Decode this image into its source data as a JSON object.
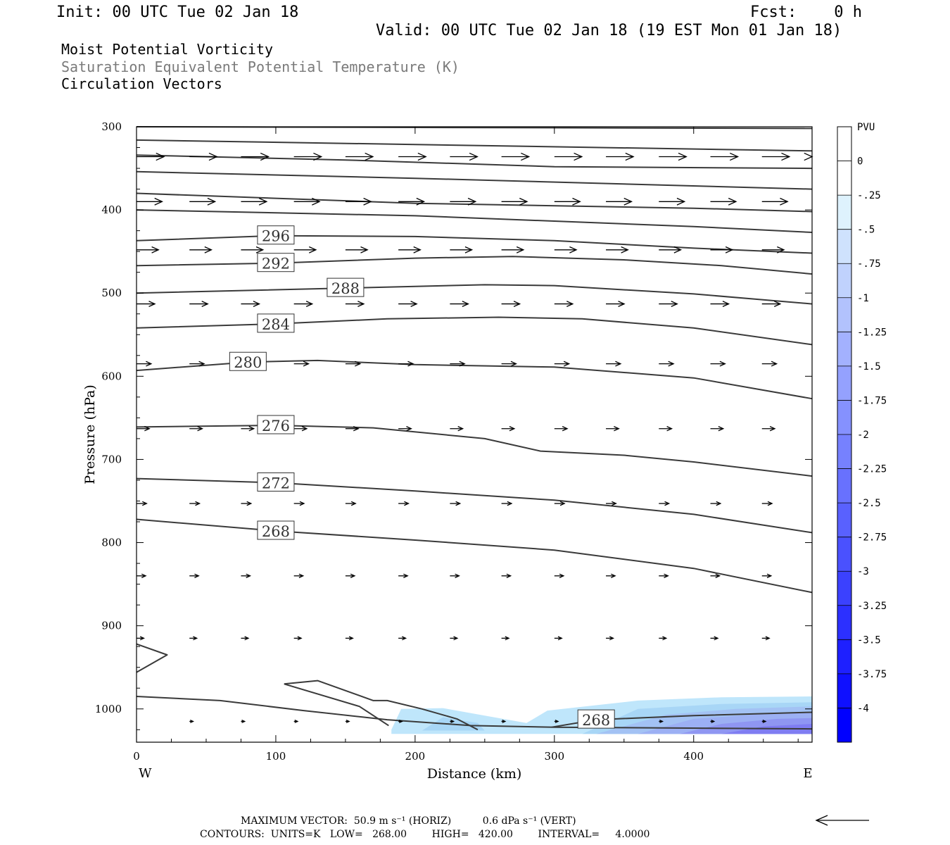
{
  "header": {
    "init": "Init: 00 UTC Tue 02 Jan 18",
    "fcst": "Fcst:    0 h",
    "valid": "Valid: 00 UTC Tue 02 Jan 18 (19 EST Mon 01 Jan 18)",
    "title1": "Moist Potential Vorticity",
    "title2": "Saturation Equivalent Potential Temperature (K)",
    "title3": "Circulation Vectors"
  },
  "footer": {
    "max_vector": "MAXIMUM VECTOR:  50.9 m s⁻¹ (HORIZ)          0.6 dPa s⁻¹ (VERT)",
    "contours": "CONTOURS:  UNITS=K   LOW=   268.00        HIGH=   420.00        INTERVAL=     4.0000"
  },
  "colors": {
    "contour": "#3a3a3a",
    "vector": "#000000",
    "pv_fill": [
      "#bfe6fb",
      "#a8d6f6",
      "#a3c2f4",
      "#9cb0f4",
      "#8f96f2",
      "#7f7df2"
    ]
  },
  "chart_data": {
    "type": "cross-section",
    "xlabel": "Distance (km)",
    "ylabel": "Pressure (hPa)",
    "xlim": [
      0,
      485
    ],
    "ylim": [
      1040,
      300
    ],
    "xticks": [
      0,
      100,
      200,
      300,
      400
    ],
    "yticks": [
      300,
      400,
      500,
      600,
      700,
      800,
      900,
      1000
    ],
    "x_end_labels": {
      "left": "W",
      "right": "E"
    },
    "colorbar": {
      "unit": "PVU",
      "levels": [
        "0",
        "-.25",
        "-.5",
        "-.75",
        "-1",
        "-1.25",
        "-1.5",
        "-1.75",
        "-2",
        "-2.25",
        "-2.5",
        "-2.75",
        "-3",
        "-3.25",
        "-3.5",
        "-3.75",
        "-4"
      ]
    },
    "contours": [
      {
        "pts": [
          [
            0,
            300
          ],
          [
            485,
            302
          ]
        ]
      },
      {
        "pts": [
          [
            0,
            316
          ],
          [
            485,
            329
          ]
        ]
      },
      {
        "pts": [
          [
            0,
            334
          ],
          [
            150,
            340
          ],
          [
            300,
            348
          ],
          [
            485,
            350
          ]
        ]
      },
      {
        "pts": [
          [
            0,
            354
          ],
          [
            200,
            362
          ],
          [
            485,
            375
          ]
        ]
      },
      {
        "pts": [
          [
            0,
            380
          ],
          [
            200,
            392
          ],
          [
            400,
            398
          ],
          [
            485,
            402
          ]
        ]
      },
      {
        "pts": [
          [
            0,
            400
          ],
          [
            200,
            407
          ],
          [
            400,
            420
          ],
          [
            485,
            427
          ]
        ]
      },
      {
        "label": "296",
        "pts": [
          [
            0,
            437
          ],
          [
            100,
            431
          ],
          [
            200,
            432
          ],
          [
            300,
            437
          ],
          [
            400,
            446
          ],
          [
            485,
            452
          ]
        ]
      },
      {
        "label": "292",
        "pts": [
          [
            0,
            467
          ],
          [
            100,
            464
          ],
          [
            200,
            458
          ],
          [
            270,
            456
          ],
          [
            350,
            460
          ],
          [
            420,
            467
          ],
          [
            485,
            477
          ]
        ]
      },
      {
        "label": "288",
        "pts": [
          [
            0,
            500
          ],
          [
            150,
            494
          ],
          [
            250,
            490
          ],
          [
            300,
            491
          ],
          [
            400,
            501
          ],
          [
            450,
            508
          ],
          [
            485,
            513
          ]
        ]
      },
      {
        "label": "284",
        "pts": [
          [
            0,
            542
          ],
          [
            100,
            537
          ],
          [
            180,
            531
          ],
          [
            260,
            529
          ],
          [
            320,
            531
          ],
          [
            400,
            542
          ],
          [
            485,
            562
          ]
        ]
      },
      {
        "label": "280",
        "pts": [
          [
            0,
            593
          ],
          [
            80,
            583
          ],
          [
            130,
            581
          ],
          [
            200,
            586
          ],
          [
            300,
            589
          ],
          [
            400,
            602
          ],
          [
            485,
            627
          ]
        ]
      },
      {
        "label": "276",
        "pts": [
          [
            0,
            661
          ],
          [
            100,
            659
          ],
          [
            170,
            662
          ],
          [
            250,
            675
          ],
          [
            290,
            690
          ],
          [
            350,
            695
          ],
          [
            400,
            703
          ],
          [
            485,
            720
          ]
        ]
      },
      {
        "label": "272",
        "pts": [
          [
            0,
            723
          ],
          [
            100,
            728
          ],
          [
            200,
            738
          ],
          [
            300,
            749
          ],
          [
            400,
            766
          ],
          [
            485,
            788
          ]
        ]
      },
      {
        "label": "268",
        "pts": [
          [
            0,
            772
          ],
          [
            100,
            786
          ],
          [
            200,
            797
          ],
          [
            300,
            809
          ],
          [
            400,
            831
          ],
          [
            485,
            860
          ]
        ]
      },
      {
        "pts": [
          [
            0,
            922
          ],
          [
            22,
            935
          ],
          [
            0,
            956
          ]
        ]
      },
      {
        "pts": [
          [
            0,
            985
          ],
          [
            60,
            990
          ],
          [
            120,
            1002
          ],
          [
            180,
            1013
          ],
          [
            240,
            1020
          ],
          [
            300,
            1022
          ],
          [
            485,
            1024
          ]
        ]
      },
      {
        "pts": [
          [
            106,
            970
          ],
          [
            130,
            966
          ],
          [
            170,
            990
          ],
          [
            180,
            990
          ],
          [
            205,
            1000
          ],
          [
            230,
            1012
          ],
          [
            245,
            1025
          ]
        ]
      },
      {
        "pts": [
          [
            106,
            970
          ],
          [
            160,
            997
          ],
          [
            181,
            1020
          ]
        ]
      },
      {
        "label": "268",
        "pts": [
          [
            298,
            1022
          ],
          [
            330,
            1013
          ],
          [
            400,
            1008
          ],
          [
            485,
            1004
          ]
        ]
      }
    ],
    "pv_regions": [
      {
        "level": "-.25",
        "pts": [
          [
            183,
            1025
          ],
          [
            190,
            1000
          ],
          [
            220,
            999
          ],
          [
            250,
            1008
          ],
          [
            280,
            1017
          ],
          [
            295,
            1002
          ],
          [
            360,
            990
          ],
          [
            420,
            986
          ],
          [
            485,
            985
          ],
          [
            485,
            1030
          ],
          [
            183,
            1030
          ]
        ]
      },
      {
        "level": "-.5",
        "pts": [
          [
            205,
            1026
          ],
          [
            220,
            1010
          ],
          [
            245,
            1017
          ],
          [
            250,
            1026
          ]
        ]
      },
      {
        "level": "-.5",
        "pts": [
          [
            320,
            1030
          ],
          [
            360,
            1000
          ],
          [
            420,
            994
          ],
          [
            485,
            992
          ],
          [
            485,
            1030
          ]
        ]
      },
      {
        "level": "-.75",
        "pts": [
          [
            330,
            1030
          ],
          [
            380,
            1007
          ],
          [
            430,
            1000
          ],
          [
            485,
            997
          ],
          [
            485,
            1030
          ]
        ]
      },
      {
        "level": "-1",
        "pts": [
          [
            360,
            1030
          ],
          [
            400,
            1012
          ],
          [
            450,
            1006
          ],
          [
            485,
            1004
          ],
          [
            485,
            1030
          ]
        ]
      },
      {
        "level": "-1.25",
        "pts": [
          [
            390,
            1030
          ],
          [
            420,
            1018
          ],
          [
            460,
            1012
          ],
          [
            485,
            1011
          ],
          [
            485,
            1030
          ]
        ]
      },
      {
        "level": "-1.5",
        "pts": [
          [
            420,
            1030
          ],
          [
            450,
            1021
          ],
          [
            485,
            1018
          ],
          [
            485,
            1030
          ]
        ]
      }
    ],
    "vectors": [
      {
        "p": 336,
        "len": 15,
        "xs": [
          0,
          38,
          75,
          113,
          150,
          188,
          225,
          262,
          300,
          337,
          375,
          412,
          449,
          485
        ]
      },
      {
        "p": 390,
        "len": 14,
        "xs": [
          0,
          38,
          75,
          113,
          150,
          188,
          225,
          262,
          300,
          337,
          375,
          412,
          449
        ]
      },
      {
        "p": 448,
        "len": 12,
        "xs": [
          0,
          38,
          75,
          113,
          150,
          188,
          225,
          262,
          300,
          337,
          375,
          412,
          449
        ]
      },
      {
        "p": 513,
        "len": 10,
        "xs": [
          0,
          38,
          75,
          113,
          150,
          188,
          225,
          262,
          300,
          337,
          375,
          412,
          449
        ]
      },
      {
        "p": 585,
        "len": 8,
        "xs": [
          0,
          38,
          75,
          113,
          150,
          188,
          225,
          262,
          300,
          337,
          375,
          412,
          449
        ]
      },
      {
        "p": 663,
        "len": 7,
        "xs": [
          0,
          38,
          75,
          113,
          150,
          188,
          225,
          262,
          300,
          337,
          375,
          412,
          449
        ]
      },
      {
        "p": 753,
        "len": 5.5,
        "xs": [
          0,
          38,
          75,
          113,
          150,
          188,
          225,
          262,
          300,
          337,
          375,
          412,
          449
        ]
      },
      {
        "p": 840,
        "len": 5,
        "xs": [
          0,
          38,
          75,
          113,
          150,
          188,
          225,
          262,
          300,
          337,
          375,
          412,
          449
        ]
      },
      {
        "p": 915,
        "len": 4,
        "xs": [
          0,
          38,
          75,
          113,
          150,
          188,
          225,
          262,
          300,
          337,
          375,
          412,
          449
        ]
      },
      {
        "p": 1015,
        "len": 2,
        "xs": [
          38,
          75,
          113,
          150,
          188,
          225,
          262,
          300,
          337,
          375,
          412,
          449
        ]
      }
    ]
  }
}
